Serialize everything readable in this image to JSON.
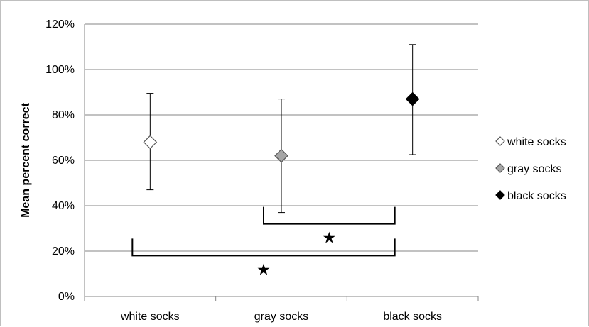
{
  "chart_data": {
    "type": "scatter",
    "title": "",
    "xlabel": "",
    "ylabel": "Mean percent correct",
    "ylim": [
      0,
      120
    ],
    "yticks": [
      "0%",
      "20%",
      "40%",
      "60%",
      "80%",
      "100%",
      "120%"
    ],
    "categories": [
      "white socks",
      "gray socks",
      "black socks"
    ],
    "grid": true,
    "legend_position": "right",
    "series": [
      {
        "name": "white socks",
        "marker": "diamond",
        "color": "#ffffff",
        "values": [
          68,
          null,
          null
        ],
        "error_low": [
          47,
          null,
          null
        ],
        "error_high": [
          89.5,
          null,
          null
        ]
      },
      {
        "name": "gray socks",
        "marker": "diamond",
        "color": "#a6a6a6",
        "values": [
          null,
          62,
          null
        ],
        "error_low": [
          null,
          37,
          null
        ],
        "error_high": [
          null,
          87,
          null
        ]
      },
      {
        "name": "black socks",
        "marker": "diamond",
        "color": "#000000",
        "values": [
          null,
          null,
          87
        ],
        "error_low": [
          null,
          null,
          62.5
        ],
        "error_high": [
          null,
          null,
          111
        ]
      }
    ],
    "annotations": [
      {
        "type": "significance-bracket",
        "from": "gray socks",
        "to": "black socks",
        "y": 32,
        "symbol": "★"
      },
      {
        "type": "significance-bracket",
        "from": "white socks",
        "to": "black socks",
        "y": 18,
        "symbol": "★"
      }
    ]
  }
}
